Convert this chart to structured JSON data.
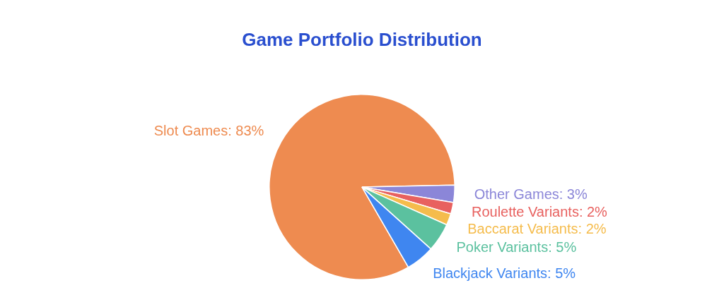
{
  "chart_data": {
    "type": "pie",
    "title": "Game Portfolio Distribution",
    "categories": [
      "Slot Games",
      "Other Games",
      "Roulette Variants",
      "Baccarat Variants",
      "Poker Variants",
      "Blackjack Variants"
    ],
    "values": [
      83,
      3,
      2,
      2,
      5,
      5
    ],
    "value_labels": [
      "83%",
      "3%",
      "2%",
      "2%",
      "5%",
      "5%"
    ],
    "colors": [
      "#ee8b50",
      "#8b86d8",
      "#e8615f",
      "#f5bc4c",
      "#5bc19f",
      "#3f86f0"
    ],
    "legend": false
  }
}
